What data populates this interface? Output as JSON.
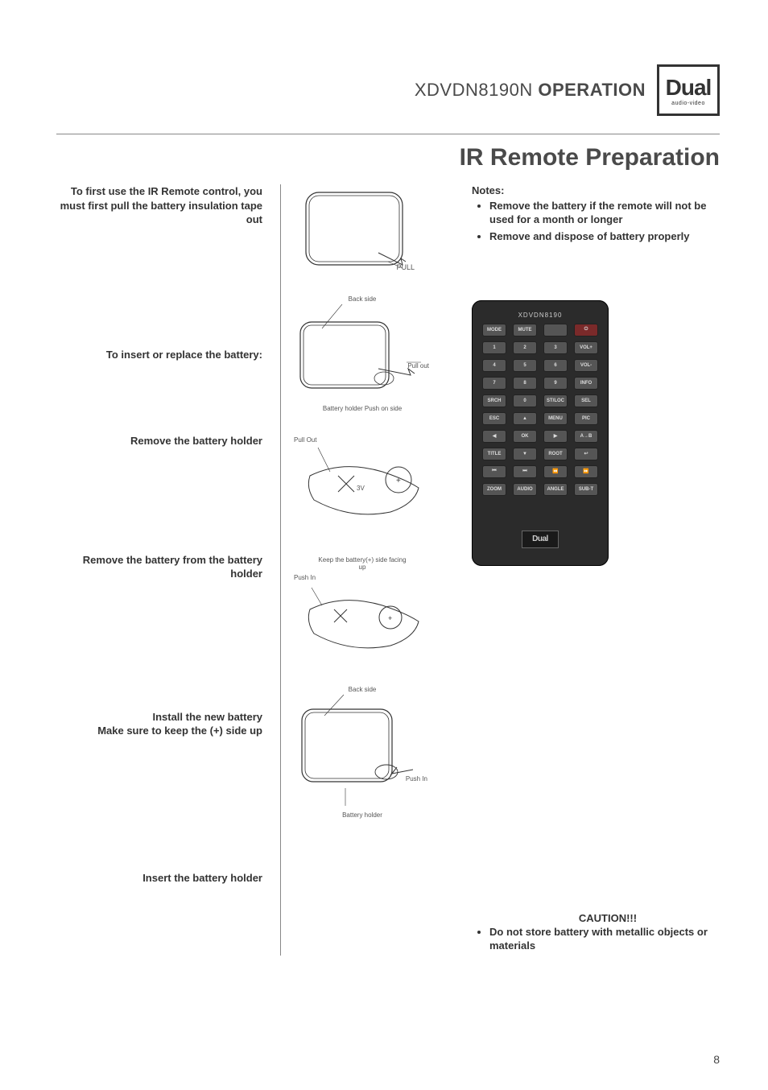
{
  "header": {
    "model": "XDVDN8190N",
    "operation": "OPERATION",
    "logo_main": "Dual",
    "logo_sub": "audio-video"
  },
  "page_title": "IR Remote Preparation",
  "steps": {
    "s1": "To first use the IR Remote control, you must first pull the battery insulation tape out",
    "s2": "To insert or replace the battery:",
    "s3": "Remove the battery holder",
    "s4": "Remove the battery from the battery holder",
    "s5": "Install the new battery",
    "s5b": "Make sure to keep the  (+) side up",
    "s6": "Insert the battery holder"
  },
  "illus_labels": {
    "pull": "PULL",
    "back_side": "Back side",
    "pull_out": "Pull out",
    "batt_holder": "Battery holder   Push on side",
    "pull_out2": "Pull Out",
    "keep": "Keep the battery(+) side facing up",
    "push_in": "Push In",
    "push_in2": "Push In",
    "batt_holder2": "Battery holder"
  },
  "notes": {
    "head": "Notes:",
    "n1": "Remove  the battery if the remote will not be used for a month or longer",
    "n2": "Remove and dispose of battery properly"
  },
  "remote": {
    "model": "XDVDN8190",
    "brand": "Dual",
    "buttons": [
      "MODE",
      "MUTE",
      "",
      "⏻",
      "1",
      "2",
      "3",
      "VOL+",
      "4",
      "5",
      "6",
      "VOL-",
      "7",
      "8",
      "9",
      "INFO",
      "SRCH",
      "0",
      "ST/LOC",
      "SEL",
      "ESC",
      "▲",
      "MENU",
      "PIC",
      "◀",
      "OK",
      "▶",
      "A→B",
      "TITLE",
      "▼",
      "ROOT",
      "↩",
      "⏮",
      "⏭",
      "⏪",
      "⏩",
      "ZOOM",
      "AUDIO",
      "ANGLE",
      "SUB-T"
    ]
  },
  "caution": {
    "head": "CAUTION!!!",
    "text": "Do not store battery with metallic objects or materials"
  },
  "page_number": "8",
  "colors": {
    "text": "#4a4a4a",
    "line": "#888888",
    "remote_bg": "#2b2b2b",
    "btn": "#555555"
  }
}
